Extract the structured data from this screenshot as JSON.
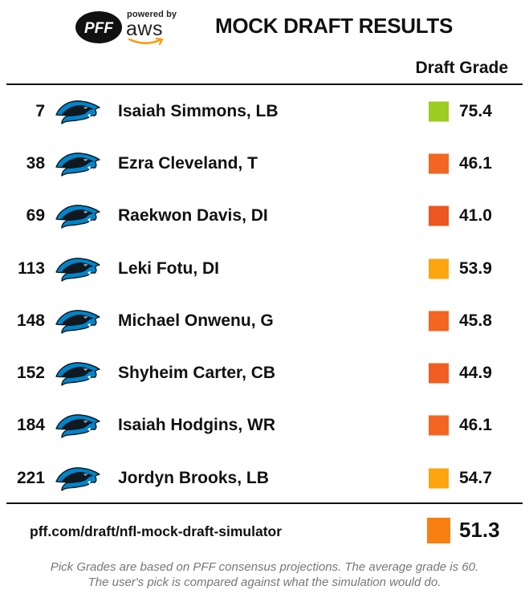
{
  "header": {
    "pff_logo_text": "PFF",
    "powered_by": "powered by",
    "aws_text": "aws",
    "title": "MOCK DRAFT RESULTS"
  },
  "table": {
    "grade_column_label": "Draft Grade",
    "team_logo_icon": "carolina-panthers-logo-icon",
    "rows": [
      {
        "pick": "7",
        "player": "Isaiah Simmons, LB",
        "grade": "75.4",
        "color": "#9ccc1f"
      },
      {
        "pick": "38",
        "player": "Ezra Cleveland, T",
        "grade": "46.1",
        "color": "#f26522"
      },
      {
        "pick": "69",
        "player": "Raekwon Davis, DI",
        "grade": "41.0",
        "color": "#ec5722"
      },
      {
        "pick": "113",
        "player": "Leki Fotu, DI",
        "grade": "53.9",
        "color": "#fca511"
      },
      {
        "pick": "148",
        "player": "Michael Onwenu, G",
        "grade": "45.8",
        "color": "#f26522"
      },
      {
        "pick": "152",
        "player": "Shyheim Carter, CB",
        "grade": "44.9",
        "color": "#f05e22"
      },
      {
        "pick": "184",
        "player": "Isaiah Hodgins, WR",
        "grade": "46.1",
        "color": "#f26522"
      },
      {
        "pick": "221",
        "player": "Jordyn Brooks, LB",
        "grade": "54.7",
        "color": "#fca511"
      }
    ]
  },
  "footer": {
    "url": "pff.com/draft/nfl-mock-draft-simulator",
    "average_grade": "51.3",
    "average_color": "#f78011",
    "note_line1": "Pick Grades are based on PFF consensus projections. The average grade is 60.",
    "note_line2": "The user's pick is compared against what the simulation would do."
  }
}
